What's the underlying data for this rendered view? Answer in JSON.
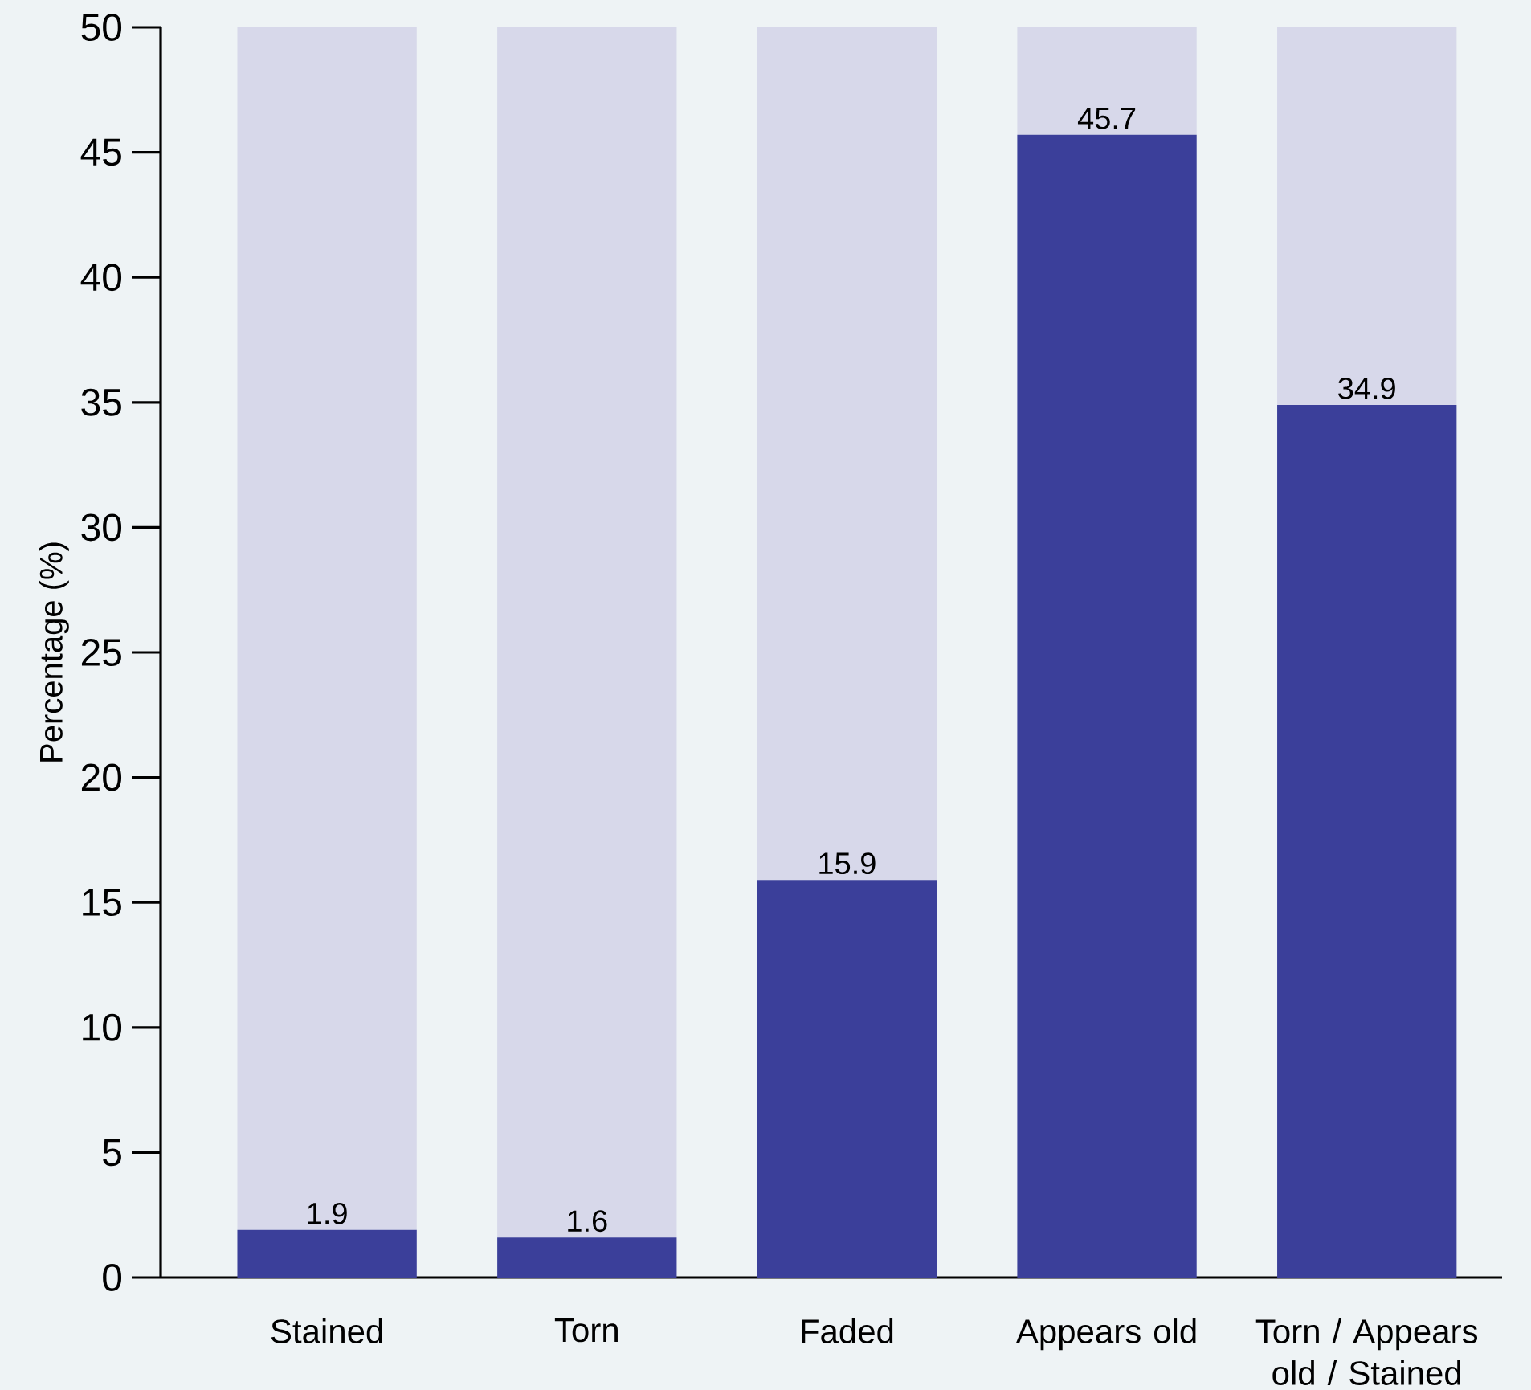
{
  "chart_data": {
    "type": "bar",
    "ylabel": "Percentage (%)",
    "stacked": true,
    "categories": [
      "Stained",
      "Torn",
      "Faded",
      "Appears old",
      "Torn / Appears old / Stained"
    ],
    "series": [
      {
        "color": "#3b3f9a",
        "values": [
          1.9,
          1.6,
          15.9,
          45.7,
          34.9
        ],
        "value_labels": [
          "1.9",
          "1.6",
          "15.9",
          "45.7",
          "34.9"
        ]
      },
      {
        "color": "#d7d8ea",
        "values": [
          48.1,
          48.4,
          34.1,
          4.3,
          15.1
        ]
      }
    ],
    "ylim": [
      0,
      50
    ],
    "yticks": [
      0,
      5,
      10,
      15,
      20,
      25,
      30,
      35,
      40,
      45,
      50
    ],
    "grid": false
  }
}
